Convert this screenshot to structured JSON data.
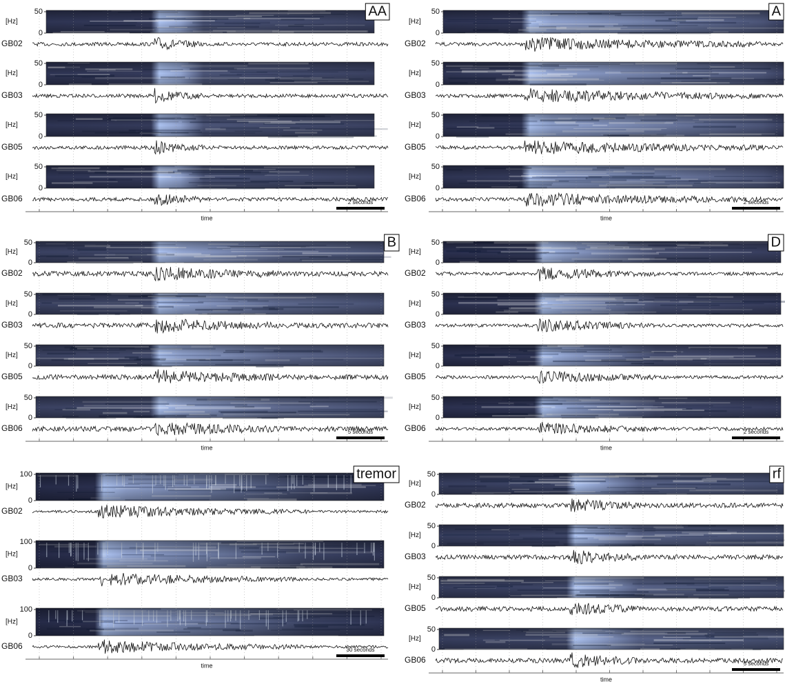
{
  "panels": [
    {
      "label": "AA",
      "scale_bar": "2 seconds",
      "x_label": "time",
      "stations": [
        {
          "name": "GB02",
          "yticks": [
            50,
            0
          ],
          "unit": "[Hz]"
        },
        {
          "name": "GB03",
          "yticks": [
            50,
            0
          ],
          "unit": "[Hz]"
        },
        {
          "name": "GB05",
          "yticks": [
            50,
            0
          ],
          "unit": "[Hz]"
        },
        {
          "name": "GB06",
          "yticks": [
            50,
            0
          ],
          "unit": "[Hz]"
        }
      ]
    },
    {
      "label": "A",
      "scale_bar": "2 seconds",
      "x_label": "time",
      "stations": [
        {
          "name": "GB02",
          "yticks": [
            50,
            0
          ],
          "unit": "[Hz]"
        },
        {
          "name": "GB03",
          "yticks": [
            50,
            0
          ],
          "unit": "[Hz]"
        },
        {
          "name": "GB05",
          "yticks": [
            50,
            0
          ],
          "unit": "[Hz]"
        },
        {
          "name": "GB06",
          "yticks": [
            50,
            0
          ],
          "unit": "[Hz]"
        }
      ]
    },
    {
      "label": "B",
      "scale_bar": "5 seconds",
      "x_label": "time",
      "stations": [
        {
          "name": "GB02",
          "yticks": [
            50,
            0
          ],
          "unit": "[Hz]"
        },
        {
          "name": "GB03",
          "yticks": [
            50,
            0
          ],
          "unit": "[Hz]"
        },
        {
          "name": "GB05",
          "yticks": [
            50,
            0
          ],
          "unit": "[Hz]"
        },
        {
          "name": "GB06",
          "yticks": [
            50,
            0
          ],
          "unit": "[Hz]"
        }
      ]
    },
    {
      "label": "D",
      "scale_bar": "2 seconds",
      "x_label": "time",
      "stations": [
        {
          "name": "GB02",
          "yticks": [
            50,
            0
          ],
          "unit": "[Hz]"
        },
        {
          "name": "GB03",
          "yticks": [
            50,
            0
          ],
          "unit": "[Hz]"
        },
        {
          "name": "GB05",
          "yticks": [
            50,
            0
          ],
          "unit": "[Hz]"
        },
        {
          "name": "GB06",
          "yticks": [
            50,
            0
          ],
          "unit": "[Hz]"
        }
      ]
    },
    {
      "label": "tremor",
      "scale_bar": "30 seconds",
      "x_label": "time",
      "stations": [
        {
          "name": "GB02",
          "yticks": [
            100,
            0
          ],
          "unit": "[Hz]"
        },
        {
          "name": "GB03",
          "yticks": [
            100,
            0
          ],
          "unit": "[Hz]"
        },
        {
          "name": "GB06",
          "yticks": [
            100,
            0
          ],
          "unit": "[Hz]"
        }
      ]
    },
    {
      "label": "rf",
      "scale_bar": "5 seconds",
      "x_label": "time",
      "stations": [
        {
          "name": "GB02",
          "yticks": [
            50,
            0
          ],
          "unit": "[Hz]"
        },
        {
          "name": "GB03",
          "yticks": [
            50,
            0
          ],
          "unit": "[Hz]"
        },
        {
          "name": "GB05",
          "yticks": [
            50,
            0
          ],
          "unit": "[Hz]"
        },
        {
          "name": "GB06",
          "yticks": [
            50,
            0
          ],
          "unit": "[Hz]"
        }
      ]
    }
  ]
}
